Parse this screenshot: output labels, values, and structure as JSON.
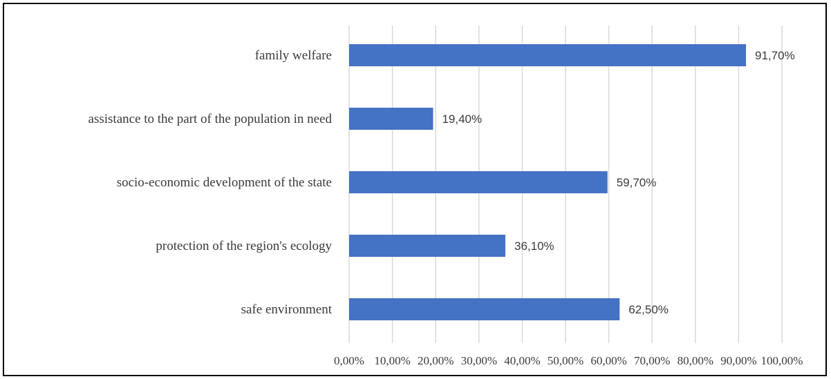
{
  "chart_data": {
    "type": "bar",
    "orientation": "horizontal",
    "categories": [
      "family welfare",
      "assistance to the part of the population in need",
      "socio-economic development of the state",
      "protection of the region's ecology",
      "safe environment"
    ],
    "values": [
      91.7,
      19.4,
      59.7,
      36.1,
      62.5
    ],
    "data_labels": [
      "91,70%",
      "19,40%",
      "59,70%",
      "36,10%",
      "62,50%"
    ],
    "xlim": [
      0,
      100
    ],
    "x_ticks": [
      0,
      10,
      20,
      30,
      40,
      50,
      60,
      70,
      80,
      90,
      100
    ],
    "x_tick_labels": [
      "0,00%",
      "10,00%",
      "20,00%",
      "30,00%",
      "40,00%",
      "50,00%",
      "60,00%",
      "70,00%",
      "80,00%",
      "90,00%",
      "100,00%"
    ],
    "grid": "vertical",
    "legend": "none",
    "colors": {
      "bar": "#4472c4",
      "grid": "#d9d9d9",
      "text": "#3a3a3a"
    }
  }
}
